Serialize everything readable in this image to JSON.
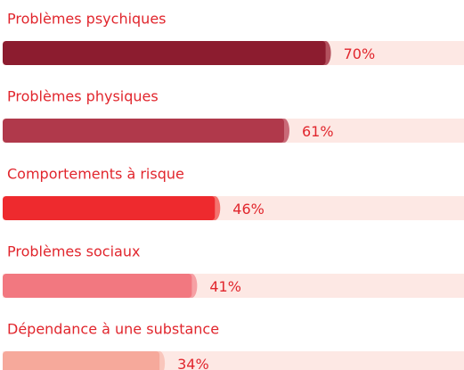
{
  "chart_data": {
    "type": "hbar",
    "categories": [
      "Problèmes psychiques",
      "Problèmes physiques",
      "Comportements à risque",
      "Problèmes sociaux",
      "Dépendance à une substance"
    ],
    "values": [
      70,
      61,
      46,
      41,
      34
    ],
    "value_labels": [
      "70%",
      "61%",
      "46%",
      "41%",
      "34%"
    ],
    "colors": [
      "#8c1c2f",
      "#b0394b",
      "#ee2a2e",
      "#f27880",
      "#f6a99b"
    ],
    "cap_colors": [
      "#b3525f",
      "#c96a78",
      "#f4746f",
      "#f6a0a4",
      "#f9c6bc"
    ],
    "track_color": "#fde8e4",
    "xlim": [
      0,
      100
    ]
  }
}
